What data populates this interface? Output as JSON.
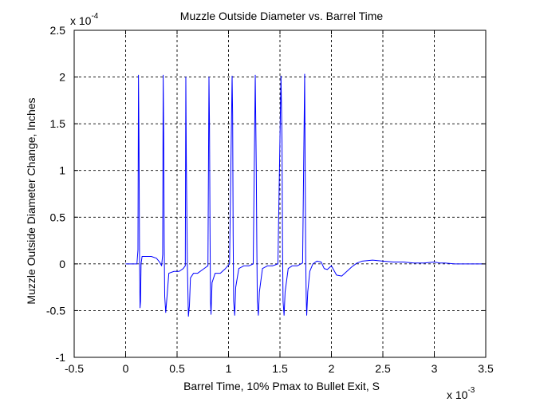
{
  "chart_data": {
    "type": "line",
    "title": "Muzzle Outside Diameter vs. Barrel Time",
    "xlabel": "Barrel Time, 10% Pmax to Bullet Exit, S",
    "ylabel": "Muzzle Outside Diameter Change, Inches",
    "x_multiplier": "x 10",
    "x_exponent": "-3",
    "y_multiplier": "x 10",
    "y_exponent": "-4",
    "xlim": [
      -0.5,
      3.5
    ],
    "ylim": [
      -1,
      2.5
    ],
    "xticks": [
      -0.5,
      0,
      0.5,
      1,
      1.5,
      2,
      2.5,
      3,
      3.5
    ],
    "xtick_labels": [
      "-0.5",
      "0",
      "0.5",
      "1",
      "1.5",
      "2",
      "2.5",
      "3",
      "3.5"
    ],
    "yticks": [
      -1,
      -0.5,
      0,
      0.5,
      1,
      1.5,
      2,
      2.5
    ],
    "ytick_labels": [
      "-1",
      "-0.5",
      "0",
      "0.5",
      "1",
      "1.5",
      "2",
      "2.5"
    ],
    "grid": true,
    "series": [
      {
        "color": "#0000ff",
        "x": [
          0,
          0.11,
          0.12,
          0.125,
          0.13,
          0.135,
          0.14,
          0.145,
          0.15,
          0.16,
          0.2,
          0.25,
          0.3,
          0.33,
          0.35,
          0.36,
          0.365,
          0.37,
          0.375,
          0.38,
          0.39,
          0.42,
          0.47,
          0.52,
          0.56,
          0.58,
          0.585,
          0.59,
          0.6,
          0.61,
          0.62,
          0.63,
          0.66,
          0.7,
          0.75,
          0.8,
          0.81,
          0.815,
          0.82,
          0.825,
          0.83,
          0.84,
          0.87,
          0.92,
          0.97,
          1.01,
          1.035,
          1.04,
          1.045,
          1.05,
          1.06,
          1.07,
          1.1,
          1.15,
          1.2,
          1.24,
          1.26,
          1.27,
          1.275,
          1.28,
          1.29,
          1.3,
          1.33,
          1.38,
          1.43,
          1.48,
          1.51,
          1.52,
          1.525,
          1.53,
          1.54,
          1.55,
          1.58,
          1.62,
          1.67,
          1.72,
          1.74,
          1.745,
          1.75,
          1.755,
          1.76,
          1.77,
          1.79,
          1.82,
          1.86,
          1.9,
          1.93,
          1.96,
          2.0,
          2.05,
          2.1,
          2.15,
          2.2,
          2.25,
          2.3,
          2.4,
          2.5,
          2.6,
          2.7,
          2.8,
          2.9,
          3.0,
          3.05,
          3.1,
          3.2,
          3.3,
          3.5
        ],
        "y": [
          0,
          0,
          0.15,
          2.02,
          1.3,
          0.1,
          -0.47,
          -0.4,
          0,
          0.08,
          0.08,
          0.08,
          0.06,
          0.02,
          -0.02,
          0.1,
          2.02,
          1.4,
          0.2,
          -0.35,
          -0.52,
          -0.1,
          -0.08,
          -0.08,
          -0.05,
          -0.02,
          2.0,
          1.1,
          0,
          -0.56,
          -0.45,
          -0.15,
          -0.1,
          -0.1,
          -0.06,
          -0.02,
          2.0,
          1.5,
          0.4,
          -0.4,
          -0.54,
          -0.2,
          -0.1,
          -0.1,
          -0.05,
          0,
          2.01,
          1.6,
          0.3,
          -0.4,
          -0.55,
          -0.25,
          -0.05,
          -0.02,
          -0.02,
          0,
          2.02,
          1.0,
          0.2,
          -0.4,
          -0.55,
          -0.3,
          -0.05,
          -0.02,
          -0.02,
          0,
          2.01,
          1.3,
          0.2,
          -0.4,
          -0.55,
          -0.3,
          -0.05,
          -0.02,
          -0.02,
          0.01,
          2.03,
          1.0,
          0.1,
          -0.35,
          -0.55,
          -0.3,
          -0.08,
          0.0,
          0.03,
          0.02,
          -0.05,
          -0.06,
          -0.02,
          -0.12,
          -0.13,
          -0.08,
          -0.03,
          0.01,
          0.03,
          0.04,
          0.03,
          0.02,
          0.02,
          0.01,
          0.01,
          0.02,
          0.01,
          0.01,
          0,
          0,
          0
        ]
      }
    ]
  }
}
